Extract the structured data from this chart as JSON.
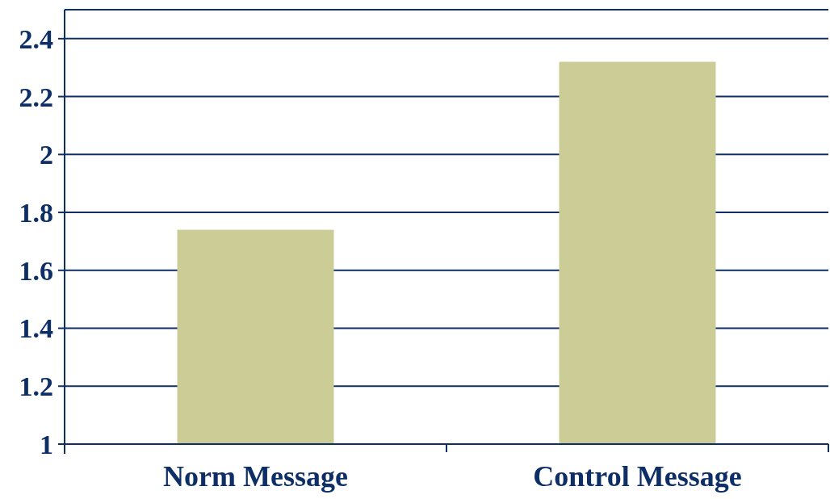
{
  "chart_data": {
    "type": "bar",
    "categories": [
      "Norm Message",
      "Control Message"
    ],
    "values": [
      1.74,
      2.32
    ],
    "color": "#cccc96",
    "ylim": [
      1,
      2.5
    ],
    "yticks": [
      1,
      1.2,
      1.4,
      1.6,
      1.8,
      2,
      2.2,
      2.4
    ],
    "grid": "y"
  }
}
